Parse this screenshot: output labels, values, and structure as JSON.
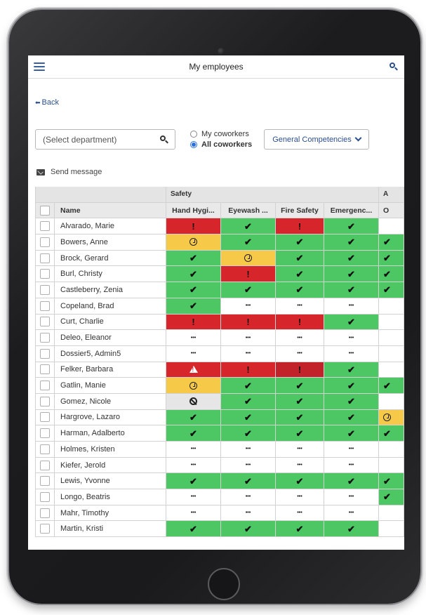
{
  "app": {
    "title": "My employees"
  },
  "nav": {
    "back_label": "Back"
  },
  "filters": {
    "department_placeholder": "(Select department)",
    "radio_my_coworkers": "My coworkers",
    "radio_all_coworkers": "All coworkers",
    "selected_radio": "All coworkers",
    "competency_dropdown": "General Competencies"
  },
  "actions": {
    "send_message": "Send message"
  },
  "status_colors": {
    "ok": "#4cc764",
    "alert": "#d6262b",
    "pending": "#f7c948",
    "blocked": "#e6e6e6",
    "not_assigned": "#ffffff"
  },
  "table": {
    "group_header": "Safety",
    "next_group_initial": "A",
    "columns": [
      "Name",
      "Hand Hygi...",
      "Eyewash ...",
      "Fire Safety",
      "Emergenc...",
      "O"
    ],
    "rows": [
      {
        "name": "Alvarado, Marie",
        "status": [
          "alert",
          "ok",
          "alert",
          "ok",
          "blank"
        ]
      },
      {
        "name": "Bowers, Anne",
        "status": [
          "pending",
          "ok",
          "ok",
          "ok",
          "ok"
        ]
      },
      {
        "name": "Brock, Gerard",
        "status": [
          "ok",
          "pending",
          "ok",
          "ok",
          "ok"
        ]
      },
      {
        "name": "Burl, Christy",
        "status": [
          "ok",
          "alert",
          "ok",
          "ok",
          "ok"
        ]
      },
      {
        "name": "Castleberry, Zenia",
        "status": [
          "ok",
          "ok",
          "ok",
          "ok",
          "ok"
        ]
      },
      {
        "name": "Copeland, Brad",
        "status": [
          "ok",
          "na",
          "na",
          "na",
          "blank"
        ]
      },
      {
        "name": "Curt, Charlie",
        "status": [
          "alert",
          "alert",
          "alert",
          "ok",
          "blank"
        ]
      },
      {
        "name": "Deleo, Eleanor",
        "status": [
          "na",
          "na",
          "na",
          "na",
          "blank"
        ]
      },
      {
        "name": "Dossier5, Admin5",
        "status": [
          "na",
          "na",
          "na",
          "na",
          "blank"
        ]
      },
      {
        "name": "Felker, Barbara",
        "status": [
          "warning",
          "alert",
          "alert2",
          "ok",
          "blank"
        ]
      },
      {
        "name": "Gatlin, Manie",
        "status": [
          "pending",
          "ok",
          "ok",
          "ok",
          "ok"
        ]
      },
      {
        "name": "Gomez, Nicole",
        "status": [
          "blocked",
          "ok",
          "ok",
          "ok",
          "blank"
        ]
      },
      {
        "name": "Hargrove, Lazaro",
        "status": [
          "ok",
          "ok",
          "ok",
          "ok",
          "pending"
        ]
      },
      {
        "name": "Harman, Adalberto",
        "status": [
          "ok",
          "ok",
          "ok",
          "ok",
          "ok"
        ]
      },
      {
        "name": "Holmes, Kristen",
        "status": [
          "na",
          "na",
          "na",
          "na",
          "blank"
        ]
      },
      {
        "name": "Kiefer, Jerold",
        "status": [
          "na",
          "na",
          "na",
          "na",
          "blank"
        ]
      },
      {
        "name": "Lewis, Yvonne",
        "status": [
          "ok",
          "ok",
          "ok",
          "ok",
          "ok"
        ]
      },
      {
        "name": "Longo, Beatris",
        "status": [
          "na",
          "na",
          "na",
          "na",
          "ok"
        ]
      },
      {
        "name": "Mahr, Timothy",
        "status": [
          "na",
          "na",
          "na",
          "na",
          "blank"
        ]
      },
      {
        "name": "Martin, Kristi",
        "status": [
          "ok",
          "ok",
          "ok",
          "ok",
          "blank"
        ]
      }
    ]
  }
}
